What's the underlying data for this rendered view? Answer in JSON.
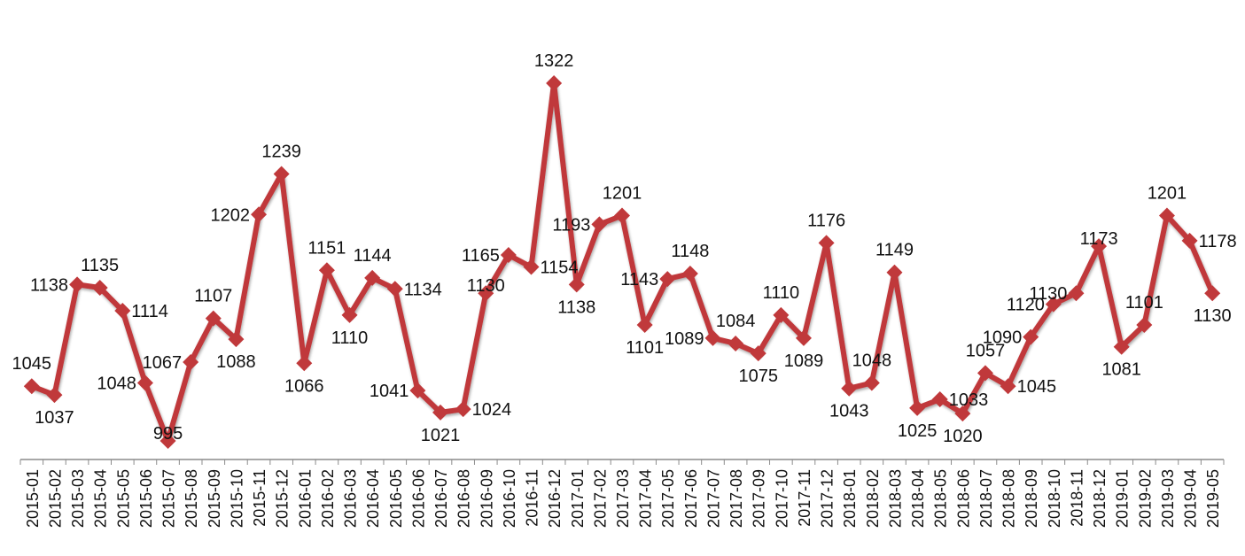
{
  "chart_data": {
    "type": "line",
    "title": "",
    "xlabel": "",
    "ylabel": "",
    "categories": [
      "2015-01",
      "2015-02",
      "2015-03",
      "2015-04",
      "2015-05",
      "2015-06",
      "2015-07",
      "2015-08",
      "2015-09",
      "2015-10",
      "2015-11",
      "2015-12",
      "2016-01",
      "2016-02",
      "2016-03",
      "2016-04",
      "2016-05",
      "2016-06",
      "2016-07",
      "2016-08",
      "2016-09",
      "2016-10",
      "2016-11",
      "2016-12",
      "2017-01",
      "2017-02",
      "2017-03",
      "2017-04",
      "2017-05",
      "2017-06",
      "2017-07",
      "2017-08",
      "2017-09",
      "2017-10",
      "2017-11",
      "2017-12",
      "2018-01",
      "2018-02",
      "2018-03",
      "2018-04",
      "2018-05",
      "2018-06",
      "2018-07",
      "2018-08",
      "2018-09",
      "2018-10",
      "2018-11",
      "2018-12",
      "2019-01",
      "2019-02",
      "2019-03",
      "2019-04",
      "2019-05"
    ],
    "series": [
      {
        "name": "",
        "color": "#c0393b",
        "marker": "diamond",
        "values": [
          1045,
          1037,
          1138,
          1135,
          1114,
          1048,
          995,
          1067,
          1107,
          1088,
          1202,
          1239,
          1066,
          1151,
          1110,
          1144,
          1134,
          1041,
          1021,
          1024,
          1130,
          1165,
          1154,
          1322,
          1138,
          1193,
          1201,
          1101,
          1143,
          1148,
          1089,
          1084,
          1075,
          1110,
          1089,
          1176,
          1043,
          1048,
          1149,
          1025,
          1033,
          1020,
          1057,
          1045,
          1090,
          1120,
          1130,
          1173,
          1081,
          1101,
          1201,
          1178,
          1130
        ]
      }
    ],
    "label_positions": [
      "above",
      "below",
      "left",
      "above",
      "right",
      "left",
      "on",
      "left",
      "above",
      "below",
      "left",
      "above",
      "below",
      "above",
      "below",
      "above",
      "right",
      "left",
      "below",
      "right",
      "on",
      "left",
      "right",
      "above",
      "below",
      "left",
      "above",
      "below",
      "left",
      "above",
      "left",
      "above",
      "below",
      "above",
      "below",
      "above",
      "below",
      "above",
      "above",
      "below",
      "right",
      "below",
      "above",
      "right",
      "left",
      "left",
      "left",
      "on",
      "below",
      "above",
      "above",
      "right",
      "below"
    ],
    "data_labels": true,
    "grid": false,
    "legend": null,
    "y_axis_visible": false,
    "ylim": [
      995,
      1322
    ],
    "x_tick_rotation": -90
  }
}
